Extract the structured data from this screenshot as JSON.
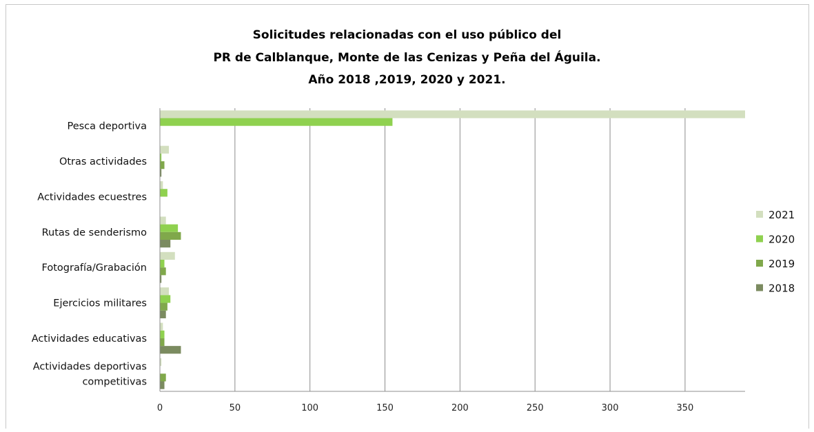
{
  "chart_data": {
    "type": "bar",
    "orientation": "horizontal",
    "title": [
      "Solicitudes relacionadas con el uso público del",
      "PR de Calblanque, Monte de las Cenizas y Peña del Águila.",
      "Año 2018 ,2019, 2020 y 2021."
    ],
    "categories": [
      "Pesca deportiva",
      "Otras actividades",
      "Actividades ecuestres",
      "Rutas de senderismo",
      "Fotografía/Grabación",
      "Ejercicios militares",
      "Actividades educativas",
      "Actividades deportivas competitivas"
    ],
    "category_label_lines": [
      [
        "Pesca deportiva"
      ],
      [
        "Otras actividades"
      ],
      [
        "Actividades ecuestres"
      ],
      [
        "Rutas de senderismo"
      ],
      [
        "Fotografía/Grabación"
      ],
      [
        "Ejercicios militares"
      ],
      [
        "Actividades educativas"
      ],
      [
        "Actividades deportivas",
        "competitivas"
      ]
    ],
    "series": [
      {
        "name": "2021",
        "color": "#d3dfbf",
        "values": [
          390,
          6,
          2,
          4,
          10,
          6,
          2,
          1
        ]
      },
      {
        "name": "2020",
        "color": "#8fd14f",
        "values": [
          155,
          1,
          5,
          12,
          3,
          7,
          3,
          0
        ]
      },
      {
        "name": "2019",
        "color": "#80a84b",
        "values": [
          0,
          3,
          0,
          14,
          4,
          5,
          3,
          4
        ]
      },
      {
        "name": "2018",
        "color": "#7b8b60",
        "values": [
          0,
          1,
          0,
          7,
          1,
          4,
          14,
          3
        ]
      }
    ],
    "xlim": [
      0,
      390
    ],
    "xticks": [
      0,
      50,
      100,
      150,
      200,
      250,
      300,
      350
    ],
    "xlabel": "",
    "ylabel": "",
    "grid": "vertical",
    "legend": "right"
  }
}
